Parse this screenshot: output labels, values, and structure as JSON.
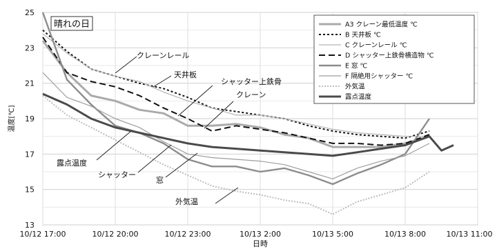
{
  "chart_data": {
    "type": "line",
    "title": "晴れの日",
    "xlabel": "日時",
    "ylabel": "温度[℃]",
    "ylim": [
      13,
      25
    ],
    "xlim": [
      "10/12 17:00",
      "10/13 11:00"
    ],
    "yticks": [
      "13",
      "15",
      "17",
      "19",
      "21",
      "23",
      "25"
    ],
    "xticks": [
      "10/12 17:00",
      "10/12 20:00",
      "10/12 23:00",
      "10/13 2:00",
      "10/13 5:00",
      "10/13 8:00",
      "10/13 11:00"
    ],
    "grid": true,
    "legend_position": "top-right",
    "series": [
      {
        "name": "A3 クレーン最低温度 ℃",
        "color": "#aaaaaa",
        "style": "solid-thick",
        "points": [
          [
            "10/12 17:00",
            23.4
          ],
          [
            "10/12 18:00",
            21.6
          ],
          [
            "10/12 19:00",
            20.3
          ],
          [
            "10/12 20:00",
            20.0
          ],
          [
            "10/12 21:00",
            19.5
          ],
          [
            "10/12 22:00",
            19.3
          ],
          [
            "10/12 23:00",
            18.6
          ],
          [
            "10/13 0:00",
            18.6
          ],
          [
            "10/13 1:00",
            18.7
          ],
          [
            "10/13 2:00",
            18.5
          ],
          [
            "10/13 3:00",
            18.1
          ],
          [
            "10/13 4:00",
            17.9
          ],
          [
            "10/13 5:00",
            17.4
          ],
          [
            "10/13 6:00",
            17.4
          ],
          [
            "10/13 7:00",
            17.4
          ],
          [
            "10/13 8:00",
            17.6
          ],
          [
            "10/13 9:00",
            18.0
          ]
        ]
      },
      {
        "name": "B 天井板 ℃",
        "color": "#111111",
        "style": "dotted",
        "points": [
          [
            "10/12 17:00",
            24.0
          ],
          [
            "10/12 18:00",
            22.8
          ],
          [
            "10/12 19:00",
            21.8
          ],
          [
            "10/12 20:00",
            21.4
          ],
          [
            "10/12 21:00",
            21.0
          ],
          [
            "10/12 22:00",
            20.7
          ],
          [
            "10/12 23:00",
            20.2
          ],
          [
            "10/13 0:00",
            19.6
          ],
          [
            "10/13 1:00",
            19.4
          ],
          [
            "10/13 2:00",
            19.2
          ],
          [
            "10/13 3:00",
            19.0
          ],
          [
            "10/13 4:00",
            18.6
          ],
          [
            "10/13 5:00",
            18.3
          ],
          [
            "10/13 6:00",
            18.1
          ],
          [
            "10/13 7:00",
            18.0
          ],
          [
            "10/13 8:00",
            17.9
          ],
          [
            "10/13 9:00",
            18.3
          ]
        ]
      },
      {
        "name": "C クレーンレール ℃",
        "color": "#b3b3b3",
        "style": "solid-thin",
        "points": [
          [
            "10/12 17:00",
            23.8
          ],
          [
            "10/12 18:00",
            22.7
          ],
          [
            "10/12 19:00",
            21.8
          ],
          [
            "10/12 20:00",
            21.4
          ],
          [
            "10/12 21:00",
            21.1
          ],
          [
            "10/12 22:00",
            20.5
          ],
          [
            "10/12 23:00",
            20.0
          ],
          [
            "10/13 0:00",
            19.6
          ],
          [
            "10/13 1:00",
            19.2
          ],
          [
            "10/13 2:00",
            19.2
          ],
          [
            "10/13 3:00",
            19.0
          ],
          [
            "10/13 4:00",
            18.7
          ],
          [
            "10/13 5:00",
            18.4
          ],
          [
            "10/13 6:00",
            18.2
          ],
          [
            "10/13 7:00",
            18.1
          ],
          [
            "10/13 8:00",
            18.0
          ],
          [
            "10/13 9:00",
            18.0
          ]
        ]
      },
      {
        "name": "D シャッター上鉄骨横造物 ℃",
        "color": "#111111",
        "style": "dashed",
        "points": [
          [
            "10/12 17:00",
            23.6
          ],
          [
            "10/12 18:00",
            21.6
          ],
          [
            "10/12 19:00",
            21.1
          ],
          [
            "10/12 20:00",
            20.8
          ],
          [
            "10/12 21:00",
            20.3
          ],
          [
            "10/12 22:00",
            19.6
          ],
          [
            "10/12 23:00",
            19.0
          ],
          [
            "10/13 0:00",
            18.3
          ],
          [
            "10/13 1:00",
            18.6
          ],
          [
            "10/13 2:00",
            18.4
          ],
          [
            "10/13 3:00",
            18.2
          ],
          [
            "10/13 4:00",
            17.9
          ],
          [
            "10/13 5:00",
            17.6
          ],
          [
            "10/13 6:00",
            17.6
          ],
          [
            "10/13 7:00",
            17.5
          ],
          [
            "10/13 8:00",
            17.6
          ],
          [
            "10/13 9:00",
            18.1
          ]
        ]
      },
      {
        "name": "E 窓 ℃",
        "color": "#8c8c8c",
        "style": "solid-medium",
        "points": [
          [
            "10/12 17:00",
            25.0
          ],
          [
            "10/12 18:00",
            21.2
          ],
          [
            "10/12 19:00",
            19.8
          ],
          [
            "10/12 20:00",
            18.6
          ],
          [
            "10/12 21:00",
            18.2
          ],
          [
            "10/12 22:00",
            17.6
          ],
          [
            "10/12 23:00",
            16.7
          ],
          [
            "10/13 0:00",
            16.3
          ],
          [
            "10/13 1:00",
            16.3
          ],
          [
            "10/13 2:00",
            16.0
          ],
          [
            "10/13 3:00",
            16.2
          ],
          [
            "10/13 4:00",
            15.8
          ],
          [
            "10/13 5:00",
            15.3
          ],
          [
            "10/13 6:00",
            15.9
          ],
          [
            "10/13 7:00",
            16.4
          ],
          [
            "10/13 8:00",
            17.0
          ],
          [
            "10/13 9:00",
            19.0
          ]
        ]
      },
      {
        "name": "F 隔絶用シャッター ℃",
        "color": "#9e9e9e",
        "style": "solid-thin",
        "points": [
          [
            "10/12 17:00",
            21.6
          ],
          [
            "10/12 18:00",
            20.2
          ],
          [
            "10/12 19:00",
            19.7
          ],
          [
            "10/12 20:00",
            19.0
          ],
          [
            "10/12 21:00",
            18.5
          ],
          [
            "10/12 22:00",
            17.7
          ],
          [
            "10/12 23:00",
            17.0
          ],
          [
            "10/13 0:00",
            16.8
          ],
          [
            "10/13 1:00",
            16.7
          ],
          [
            "10/13 2:00",
            16.6
          ],
          [
            "10/13 3:00",
            16.4
          ],
          [
            "10/13 4:00",
            16.0
          ],
          [
            "10/13 5:00",
            15.6
          ],
          [
            "10/13 6:00",
            16.2
          ],
          [
            "10/13 7:00",
            16.6
          ],
          [
            "10/13 8:00",
            16.9
          ],
          [
            "10/13 9:00",
            17.6
          ]
        ]
      },
      {
        "name": "外気温",
        "color": "#bdbdbd",
        "style": "dotted-light",
        "points": [
          [
            "10/12 17:00",
            20.3
          ],
          [
            "10/12 18:00",
            19.2
          ],
          [
            "10/12 19:00",
            18.5
          ],
          [
            "10/12 20:00",
            17.8
          ],
          [
            "10/12 21:00",
            17.1
          ],
          [
            "10/12 22:00",
            16.4
          ],
          [
            "10/12 23:00",
            15.8
          ],
          [
            "10/13 0:00",
            15.2
          ],
          [
            "10/13 1:00",
            14.9
          ],
          [
            "10/13 2:00",
            14.7
          ],
          [
            "10/13 3:00",
            14.4
          ],
          [
            "10/13 4:00",
            14.2
          ],
          [
            "10/13 5:00",
            13.6
          ],
          [
            "10/13 6:00",
            14.3
          ],
          [
            "10/13 7:00",
            14.7
          ],
          [
            "10/13 8:00",
            15.1
          ],
          [
            "10/13 9:00",
            16.0
          ]
        ]
      },
      {
        "name": "露点温度",
        "color": "#4a4a4a",
        "style": "solid-thick",
        "points": [
          [
            "10/12 17:00",
            20.4
          ],
          [
            "10/12 18:00",
            19.8
          ],
          [
            "10/12 19:00",
            19.0
          ],
          [
            "10/12 20:00",
            18.5
          ],
          [
            "10/12 21:00",
            18.2
          ],
          [
            "10/12 22:00",
            17.9
          ],
          [
            "10/12 23:00",
            17.6
          ],
          [
            "10/13 0:00",
            17.4
          ],
          [
            "10/13 1:00",
            17.3
          ],
          [
            "10/13 2:00",
            17.2
          ],
          [
            "10/13 3:00",
            17.1
          ],
          [
            "10/13 4:00",
            17.0
          ],
          [
            "10/13 5:00",
            16.9
          ],
          [
            "10/13 6:00",
            17.1
          ],
          [
            "10/13 7:00",
            17.3
          ],
          [
            "10/13 8:00",
            17.5
          ],
          [
            "10/13 9:00",
            18.0
          ],
          [
            "10/13 9:30",
            17.2
          ],
          [
            "10/13 10:00",
            17.5
          ]
        ]
      }
    ],
    "annotations": [
      "クレーンレール",
      "天井板",
      "シャッター上鉄骨",
      "クレーン",
      "露点温度",
      "シャッター",
      "窓",
      "外気温"
    ]
  }
}
